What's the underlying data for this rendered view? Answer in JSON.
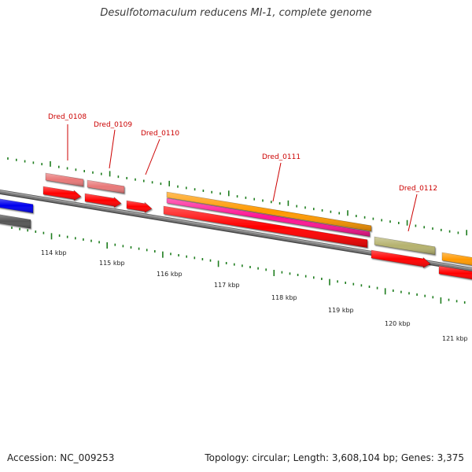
{
  "title": "Desulfotomaculum reducens MI-1, complete genome",
  "footer": {
    "accession": "Accession: NC_009253",
    "summary": "Topology: circular; Length: 3,608,104 bp; Genes: 3,375"
  },
  "ruler": {
    "labels": [
      "114 kbp",
      "115 kbp",
      "116 kbp",
      "117 kbp",
      "118 kbp",
      "119 kbp",
      "120 kbp",
      "121 kbp"
    ]
  },
  "gene_labels": [
    {
      "name": "Dred_0108",
      "color": "#cc0000"
    },
    {
      "name": "Dred_0109",
      "color": "#cc0000"
    },
    {
      "name": "Dred_0110",
      "color": "#cc0000"
    },
    {
      "name": "Dred_0111",
      "color": "#cc0000"
    },
    {
      "name": "Dred_0112",
      "color": "#cc0000"
    }
  ],
  "colors": {
    "cds_forward": "#ff0000",
    "gene_track": "#e87878",
    "orange_feature": "#ff9900",
    "pink_feature": "#ff1493",
    "olive_feature": "#b5b26e",
    "blue_feature": "#0000ee",
    "grey_feature": "#555555",
    "backbone": "#7a7a7a",
    "ruler_tick": "#1e7d1e"
  }
}
